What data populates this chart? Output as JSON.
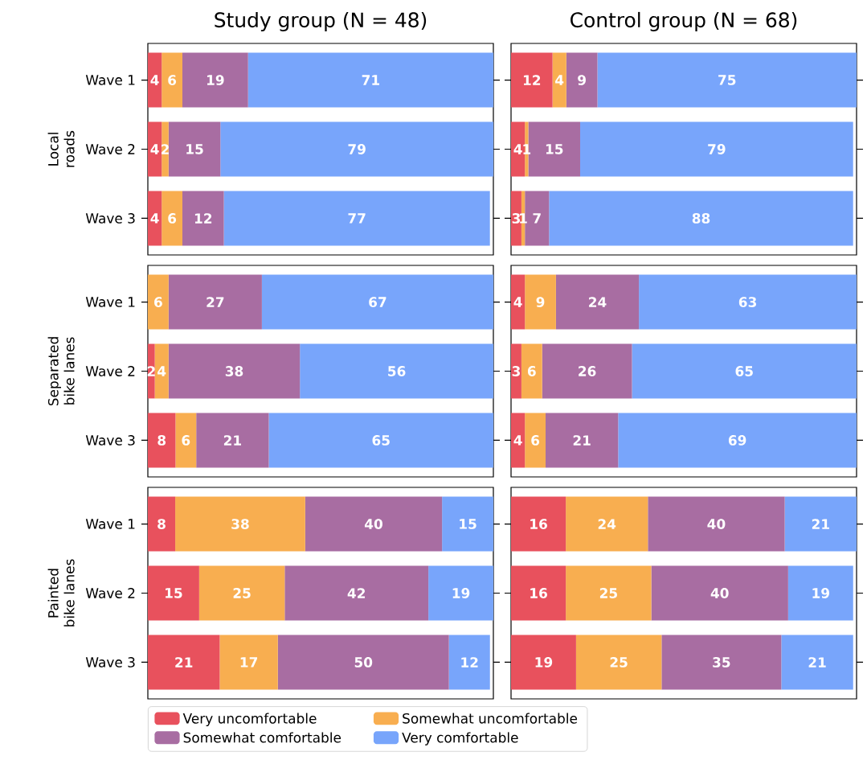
{
  "chart_data": [
    {
      "type": "bar",
      "orientation": "horizontal",
      "stacked": true,
      "title": "Study group (N = 48)",
      "ylabel": "Local roads",
      "categories": [
        "Wave 1",
        "Wave 2",
        "Wave 3"
      ],
      "data_labels": true,
      "series": [
        {
          "color": "#e8515d",
          "values": [
            4,
            4,
            4
          ]
        },
        {
          "color": "#f8ae50",
          "values": [
            6,
            2,
            6
          ]
        },
        {
          "color": "#a86da2",
          "values": [
            19,
            15,
            12
          ]
        },
        {
          "color": "#78a5fb",
          "values": [
            71,
            79,
            77
          ]
        }
      ]
    },
    {
      "type": "bar",
      "orientation": "horizontal",
      "stacked": true,
      "title": "Control group (N = 68)",
      "categories": [
        null,
        null,
        null
      ],
      "data_labels": true,
      "series": [
        {
          "color": "#e8515d",
          "values": [
            12,
            4,
            3
          ]
        },
        {
          "color": "#f8ae50",
          "values": [
            4,
            1,
            1
          ]
        },
        {
          "color": "#a86da2",
          "values": [
            9,
            15,
            7
          ]
        },
        {
          "color": "#78a5fb",
          "values": [
            75,
            79,
            88
          ]
        }
      ]
    },
    {
      "type": "bar",
      "orientation": "horizontal",
      "stacked": true,
      "ylabel": "Separated bike lanes",
      "categories": [
        "Wave 1",
        "Wave 2",
        "Wave 3"
      ],
      "data_labels": true,
      "series": [
        {
          "color": "#e8515d",
          "values": [
            null,
            2,
            8
          ]
        },
        {
          "color": "#f8ae50",
          "values": [
            6,
            4,
            6
          ]
        },
        {
          "color": "#a86da2",
          "values": [
            27,
            38,
            21
          ]
        },
        {
          "color": "#78a5fb",
          "values": [
            67,
            56,
            65
          ]
        }
      ]
    },
    {
      "type": "bar",
      "orientation": "horizontal",
      "stacked": true,
      "categories": [
        null,
        null,
        null
      ],
      "data_labels": true,
      "series": [
        {
          "color": "#e8515d",
          "values": [
            4,
            3,
            4
          ]
        },
        {
          "color": "#f8ae50",
          "values": [
            9,
            6,
            6
          ]
        },
        {
          "color": "#a86da2",
          "values": [
            24,
            26,
            21
          ]
        },
        {
          "color": "#78a5fb",
          "values": [
            63,
            65,
            69
          ]
        }
      ]
    },
    {
      "type": "bar",
      "orientation": "horizontal",
      "stacked": true,
      "ylabel": "Painted bike lanes",
      "categories": [
        "Wave 1",
        "Wave 2",
        "Wave 3"
      ],
      "data_labels": true,
      "legend": "bottom",
      "series": [
        {
          "name": "Very uncomfortable",
          "color": "#e8515d",
          "values": [
            8,
            15,
            21
          ]
        },
        {
          "name": "Somewhat uncomfortable",
          "color": "#f8ae50",
          "values": [
            38,
            25,
            17
          ]
        },
        {
          "name": "Somewhat comfortable",
          "color": "#a86da2",
          "values": [
            40,
            42,
            50
          ]
        },
        {
          "name": "Very comfortable",
          "color": "#78a5fb",
          "values": [
            15,
            19,
            12
          ]
        }
      ]
    },
    {
      "type": "bar",
      "orientation": "horizontal",
      "stacked": true,
      "categories": [
        null,
        null,
        null
      ],
      "data_labels": true,
      "series": [
        {
          "color": "#e8515d",
          "values": [
            16,
            16,
            19
          ]
        },
        {
          "color": "#f8ae50",
          "values": [
            24,
            25,
            25
          ]
        },
        {
          "color": "#a86da2",
          "values": [
            40,
            40,
            35
          ]
        },
        {
          "color": "#78a5fb",
          "values": [
            21,
            19,
            21
          ]
        }
      ]
    }
  ]
}
